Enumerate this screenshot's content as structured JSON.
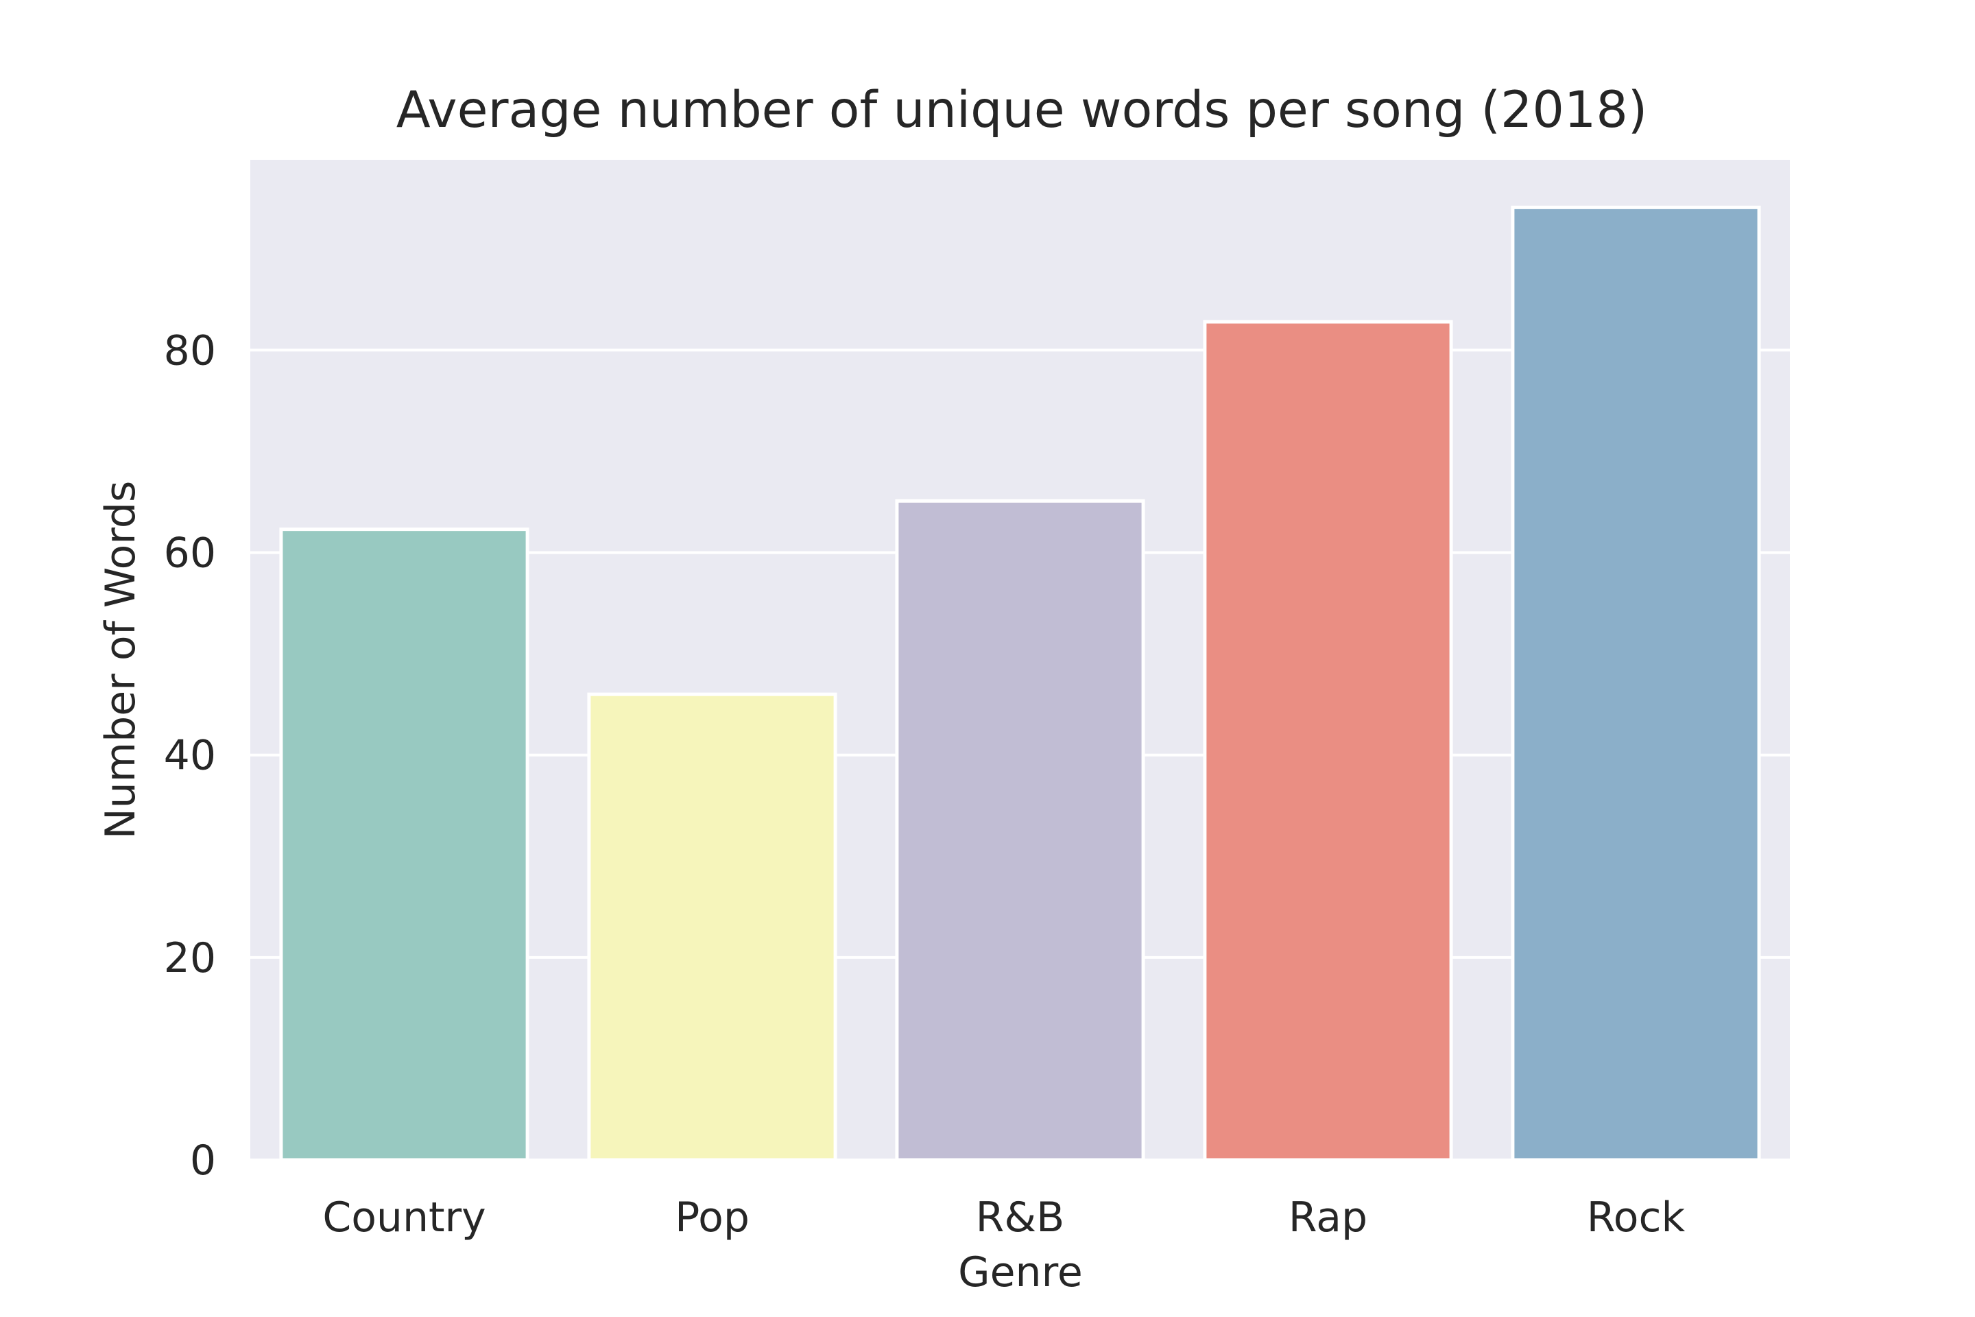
{
  "chart_data": {
    "type": "bar",
    "title": "Average number of unique words per song (2018)",
    "xlabel": "Genre",
    "ylabel": "Number of Words",
    "categories": [
      "Country",
      "Pop",
      "R&B",
      "Rap",
      "Rock"
    ],
    "values": [
      62.3,
      46.0,
      65.1,
      82.8,
      94.1
    ],
    "colors": [
      "#98c9c1",
      "#f6f5bb",
      "#c1bdd4",
      "#ea8e83",
      "#8bafc9"
    ],
    "ylim": [
      0,
      98.8
    ],
    "yticks": [
      0,
      20,
      40,
      60,
      80
    ],
    "grid": true,
    "background": "#eaeaf2",
    "gridColor": "#ffffff"
  }
}
